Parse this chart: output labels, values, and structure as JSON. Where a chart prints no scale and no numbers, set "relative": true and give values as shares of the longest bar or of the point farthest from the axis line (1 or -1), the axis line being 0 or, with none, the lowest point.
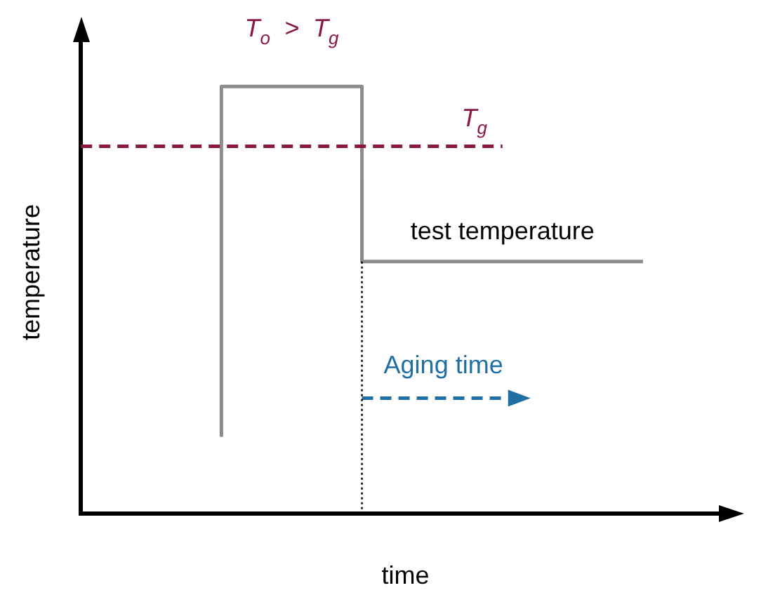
{
  "chart_data": {
    "type": "step",
    "relative": true,
    "xlabel": "time",
    "ylabel": "temperature",
    "categories": [
      null,
      null,
      null,
      null,
      null
    ],
    "series": [
      {
        "color": "#8c8c8c",
        "values": [
          null,
          0.18,
          1,
          0.59,
          0.59
        ]
      },
      {
        "type": "line",
        "name": "Aging time",
        "color": "#1f6fa5",
        "line_style": "dashed",
        "values": [
          null,
          null,
          0.27,
          0.27,
          null
        ]
      }
    ],
    "ref_lines": [
      {
        "axis": "y",
        "value": 0.86,
        "label": "T$_{g}$",
        "color": "#8b1a3a",
        "line_style": "dashed"
      }
    ],
    "annotations": [
      "T$_{o}$  >  T$_{g}$",
      {
        "text": "test temperature",
        "y": 0.59
      }
    ],
    "grid": false,
    "legend": false
  }
}
